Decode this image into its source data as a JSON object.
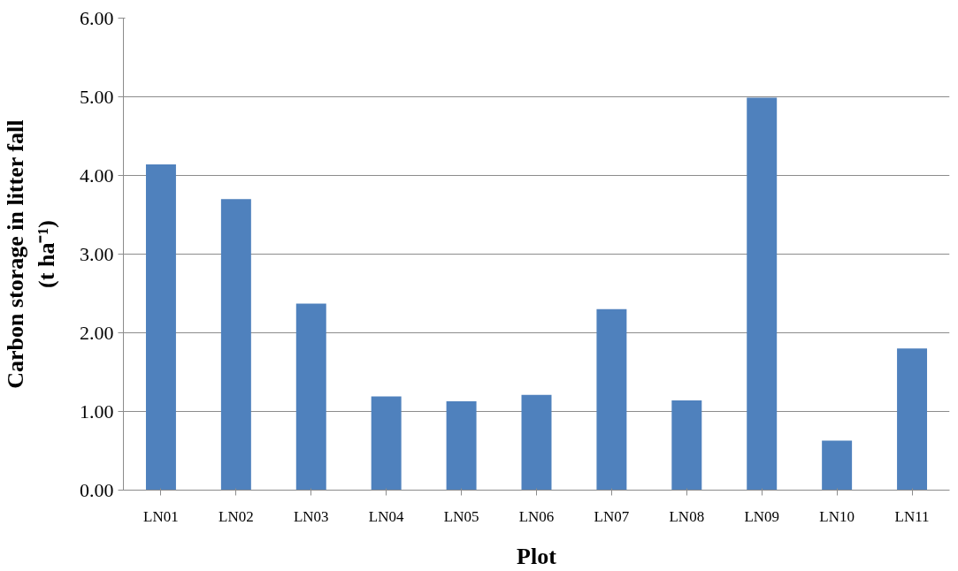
{
  "chart_data": {
    "type": "bar",
    "xlabel": "Plot",
    "ylabel": "Carbon storage in litter fall\n(t ha⁻¹)",
    "categories": [
      "LN01",
      "LN02",
      "LN03",
      "LN04",
      "LN05",
      "LN06",
      "LN07",
      "LN08",
      "LN09",
      "LN10",
      "LN11"
    ],
    "values": [
      4.14,
      3.7,
      2.37,
      1.19,
      1.13,
      1.21,
      2.3,
      1.14,
      4.99,
      0.63,
      1.8
    ],
    "color": "#4f81bd",
    "ylim": [
      0,
      6
    ],
    "yticks": [
      {
        "value": 0,
        "label": "0.00"
      },
      {
        "value": 1,
        "label": "1.00"
      },
      {
        "value": 2,
        "label": "2.00"
      },
      {
        "value": 3,
        "label": "3.00"
      },
      {
        "value": 4,
        "label": "4.00"
      },
      {
        "value": 5,
        "label": "5.00"
      },
      {
        "value": 6,
        "label": "6.00"
      }
    ],
    "grid": "y"
  }
}
